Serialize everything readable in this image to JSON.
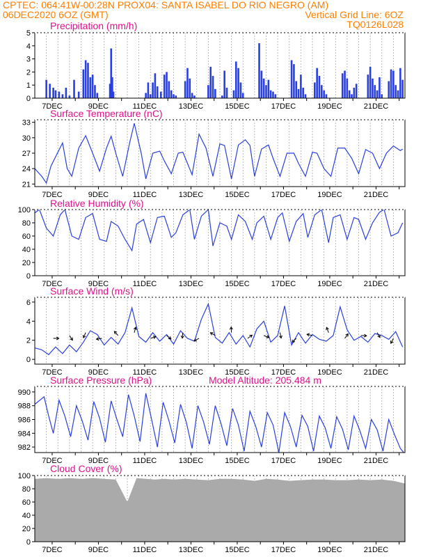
{
  "header": {
    "line1_left": "CPTEC:   064:41W-00:28N   PROX04: SANTA ISABEL DO RIO NEGRO (AM)",
    "line2_left": "06DEC2020 6OZ (GMT)",
    "line2_right": "Vertical Grid Line: 6OZ",
    "line3_right": "TQ0126L028"
  },
  "x_labels": [
    "7DEC",
    "9DEC",
    "11DEC",
    "13DEC",
    "15DEC",
    "17DEC",
    "19DEC",
    "21DEC"
  ],
  "panels": {
    "precip": {
      "title": "Precipitation (mm/h)"
    },
    "temp": {
      "title": "Surface Temperature (nC)"
    },
    "rh": {
      "title": "Relative Humidity (%)"
    },
    "wind": {
      "title": "Surface Wind (m/s)"
    },
    "pressure": {
      "title": "Surface Pressure (hPa)",
      "extra": "Model Altitude: 205.484 m"
    },
    "cloud": {
      "title": "Cloud Cover (%)"
    }
  },
  "colors": {
    "header": "#ff7f00",
    "title": "#e0118b",
    "series": "#2a3fe0",
    "cloud": "#aaaaaa"
  },
  "chart_data": [
    {
      "type": "bar",
      "title": "Precipitation (mm/h)",
      "ylim": [
        0,
        5
      ],
      "yticks": [
        0,
        1,
        2,
        3,
        4,
        5
      ],
      "x_unit": "days since 6DEC2020 06Z",
      "x": [
        0.5,
        0.65,
        0.8,
        0.9,
        1.05,
        1.2,
        1.35,
        1.5,
        1.7,
        1.9,
        2.1,
        2.2,
        2.3,
        2.4,
        2.5,
        2.6,
        2.7,
        3.25,
        3.3,
        3.35,
        3.4,
        4.8,
        4.9,
        5.0,
        5.1,
        5.2,
        5.3,
        5.45,
        5.6,
        5.7,
        5.8,
        5.9,
        6.0,
        6.1,
        6.5,
        6.6,
        6.7,
        6.8,
        6.9,
        7.5,
        7.6,
        7.7,
        7.8,
        8.1,
        8.2,
        8.3,
        8.6,
        8.7,
        8.8,
        8.9,
        9.0,
        9.7,
        9.8,
        9.9,
        10.0,
        10.1,
        10.2,
        10.3,
        10.4,
        11.1,
        11.2,
        11.3,
        11.4,
        11.5,
        11.6,
        11.7,
        12.1,
        12.2,
        12.3,
        12.4,
        12.5,
        12.6,
        13.3,
        13.4,
        13.5,
        13.6,
        13.7,
        13.8,
        13.9,
        14.4,
        14.5,
        14.6,
        14.7,
        14.8,
        14.9,
        15.0,
        15.3,
        15.4,
        15.5,
        15.6,
        15.7,
        15.8,
        15.9
      ],
      "values": [
        1.4,
        1.1,
        0.8,
        0.6,
        0.5,
        0.3,
        0.8,
        0.2,
        1.4,
        0.5,
        2.2,
        2.9,
        2.7,
        1.6,
        1.8,
        1.0,
        0.4,
        1.1,
        3.8,
        1.6,
        0.5,
        0.4,
        1.2,
        0.3,
        1.2,
        1.9,
        0.9,
        0.5,
        1.8,
        2.0,
        1.3,
        0.6,
        0.3,
        0.2,
        1.3,
        2.3,
        1.5,
        0.4,
        0.2,
        1.0,
        2.4,
        1.7,
        0.7,
        0.2,
        2.1,
        0.8,
        0.6,
        2.8,
        2.3,
        1.2,
        0.4,
        4.2,
        2.1,
        1.5,
        1.0,
        1.4,
        0.6,
        0.5,
        0.3,
        2.9,
        2.6,
        1.3,
        0.7,
        1.8,
        0.8,
        0.3,
        1.2,
        2.3,
        1.7,
        1.0,
        0.6,
        0.3,
        1.9,
        2.1,
        1.5,
        0.6,
        0.3,
        0.8,
        1.1,
        1.8,
        2.4,
        1.5,
        1.0,
        0.6,
        1.6,
        0.3,
        1.3,
        2.2,
        2.1,
        1.0,
        0.6,
        2.3,
        1.4
      ]
    },
    {
      "type": "line",
      "title": "Surface Temperature (nC)",
      "ylim": [
        20.5,
        33.5
      ],
      "yticks": [
        21,
        24,
        27,
        30,
        33
      ],
      "x_unit": "days since 6DEC2020 06Z",
      "x": [
        0,
        0.3,
        0.5,
        0.7,
        1.2,
        1.4,
        1.6,
        1.9,
        2.2,
        2.5,
        2.8,
        3.1,
        3.3,
        3.5,
        3.8,
        4.1,
        4.3,
        4.6,
        4.8,
        5.1,
        5.4,
        5.6,
        5.9,
        6.2,
        6.4,
        6.8,
        7.1,
        7.4,
        7.7,
        8.0,
        8.2,
        8.5,
        8.8,
        9.1,
        9.3,
        9.5,
        9.8,
        10.1,
        10.3,
        10.6,
        10.9,
        11.2,
        11.4,
        11.7,
        12.0,
        12.2,
        12.5,
        12.8,
        13.1,
        13.4,
        13.7,
        14.0,
        14.3,
        14.6,
        14.9,
        15.2,
        15.5,
        15.8,
        15.9
      ],
      "y": [
        24,
        22.5,
        21.2,
        24.5,
        29,
        24,
        22.5,
        28,
        30.4,
        27,
        23.5,
        28,
        30.3,
        27,
        22.5,
        29,
        32.8,
        27,
        22,
        27,
        27.4,
        25.5,
        23,
        27,
        27.2,
        22.8,
        30.7,
        28,
        22.5,
        28.8,
        28.5,
        22,
        28.6,
        29.6,
        28.5,
        22.5,
        27.8,
        28.6,
        26,
        22.5,
        27,
        27,
        25,
        22.5,
        27.2,
        27,
        24,
        22.5,
        28,
        28,
        26,
        23,
        27.7,
        27,
        24,
        27,
        28.4,
        27.5,
        27.8
      ]
    },
    {
      "type": "line",
      "title": "Relative Humidity (%)",
      "ylim": [
        0,
        100
      ],
      "yticks": [
        0,
        20,
        40,
        60,
        80,
        100
      ],
      "x_unit": "days since 6DEC2020 06Z",
      "x": [
        0,
        0.2,
        0.5,
        0.8,
        1.1,
        1.3,
        1.6,
        1.9,
        2.2,
        2.5,
        2.8,
        3.1,
        3.3,
        3.6,
        3.9,
        4.2,
        4.4,
        4.7,
        5.0,
        5.3,
        5.6,
        5.9,
        6.1,
        6.4,
        6.7,
        6.9,
        7.2,
        7.5,
        7.7,
        8.0,
        8.3,
        8.5,
        8.8,
        9.1,
        9.4,
        9.6,
        9.9,
        10.2,
        10.5,
        10.7,
        11.0,
        11.3,
        11.6,
        11.8,
        12.1,
        12.4,
        12.7,
        12.9,
        13.2,
        13.5,
        13.8,
        14.0,
        14.3,
        14.6,
        14.9,
        15.1,
        15.4,
        15.7,
        15.9
      ],
      "y": [
        95,
        100,
        72,
        60,
        92,
        100,
        60,
        55,
        88,
        94,
        55,
        52,
        82,
        75,
        55,
        38,
        78,
        85,
        50,
        88,
        90,
        58,
        65,
        92,
        100,
        55,
        90,
        100,
        45,
        80,
        75,
        55,
        92,
        82,
        55,
        80,
        90,
        55,
        88,
        95,
        52,
        82,
        94,
        58,
        92,
        100,
        50,
        88,
        92,
        55,
        88,
        85,
        55,
        80,
        96,
        100,
        60,
        65,
        80
      ]
    },
    {
      "type": "line",
      "title": "Surface Wind (m/s)",
      "ylim": [
        -0.5,
        6.5
      ],
      "yticks": [
        0,
        2,
        4,
        6
      ],
      "x_unit": "days since 6DEC2020 06Z",
      "x": [
        0,
        0.3,
        0.6,
        0.9,
        1.2,
        1.5,
        1.8,
        2.1,
        2.4,
        2.7,
        3.0,
        3.3,
        3.6,
        3.9,
        4.2,
        4.5,
        4.8,
        5.1,
        5.4,
        5.7,
        6.0,
        6.3,
        6.6,
        6.9,
        7.2,
        7.5,
        7.8,
        8.1,
        8.4,
        8.7,
        9.0,
        9.3,
        9.6,
        9.9,
        10.2,
        10.5,
        10.8,
        11.1,
        11.4,
        11.7,
        12.0,
        12.3,
        12.6,
        12.9,
        13.2,
        13.5,
        13.8,
        14.1,
        14.4,
        14.7,
        15.0,
        15.3,
        15.6,
        15.9
      ],
      "y": [
        1.2,
        1.0,
        0.5,
        1.3,
        0.6,
        1.5,
        0.8,
        1.8,
        3.0,
        2.6,
        1.5,
        2.3,
        1.6,
        2.8,
        5.4,
        2.4,
        1.8,
        2.8,
        1.9,
        2.6,
        1.6,
        3.0,
        2.2,
        1.9,
        4.2,
        5.8,
        2.3,
        1.7,
        2.8,
        1.6,
        2.5,
        1.3,
        3.2,
        4.0,
        1.8,
        2.5,
        5.6,
        1.5,
        2.8,
        1.7,
        2.6,
        2.1,
        1.9,
        2.5,
        5.5,
        3.1,
        2.0,
        2.4,
        1.8,
        2.7,
        2.5,
        2.1,
        2.9,
        1.3
      ]
    },
    {
      "type": "line",
      "title": "Surface Pressure (hPa)",
      "ylim": [
        981.2,
        990.8
      ],
      "yticks": [
        982,
        984,
        986,
        988,
        990
      ],
      "x_unit": "days since 6DEC2020 06Z",
      "x": [
        0,
        0.4,
        0.6,
        0.8,
        1.05,
        1.3,
        1.55,
        1.8,
        2.05,
        2.3,
        2.55,
        2.8,
        3.05,
        3.3,
        3.55,
        3.8,
        4.05,
        4.3,
        4.55,
        4.8,
        5.05,
        5.3,
        5.55,
        5.8,
        6.05,
        6.3,
        6.55,
        6.8,
        7.05,
        7.3,
        7.55,
        7.8,
        8.05,
        8.3,
        8.55,
        8.8,
        9.05,
        9.3,
        9.55,
        9.8,
        10.05,
        10.3,
        10.55,
        10.8,
        11.05,
        11.3,
        11.55,
        11.8,
        12.05,
        12.3,
        12.55,
        12.8,
        13.05,
        13.3,
        13.55,
        13.8,
        14.05,
        14.3,
        14.55,
        14.8,
        15.05,
        15.3,
        15.55,
        15.8,
        15.95
      ],
      "y": [
        988.2,
        989.3,
        986.5,
        984.0,
        988.8,
        986.5,
        983.5,
        988.0,
        985.8,
        983.0,
        988.6,
        986.2,
        982.7,
        988.7,
        986.0,
        983.5,
        989.6,
        986.5,
        982.8,
        989.8,
        986.0,
        982.0,
        988.5,
        985.8,
        982.6,
        988.2,
        985.6,
        981.8,
        988.0,
        985.6,
        982.4,
        988.0,
        985.4,
        982.2,
        987.6,
        985.2,
        981.4,
        987.2,
        985.0,
        982.0,
        987.0,
        985.2,
        981.2,
        987.0,
        985.0,
        982.0,
        986.6,
        985.0,
        981.4,
        986.5,
        984.8,
        981.8,
        986.4,
        984.6,
        981.6,
        986.5,
        984.4,
        981.8,
        986.0,
        984.5,
        981.4,
        986.0,
        983.8,
        981.8,
        981.2
      ]
    },
    {
      "type": "area",
      "title": "Cloud Cover (%)",
      "ylim": [
        0,
        100
      ],
      "yticks": [
        0,
        20,
        40,
        60,
        80,
        100
      ],
      "x_unit": "days since 6DEC2020 06Z",
      "x": [
        0,
        0.5,
        1.0,
        1.5,
        2.0,
        2.5,
        3.0,
        3.5,
        4.0,
        4.4,
        4.8,
        5.2,
        5.6,
        6.0,
        6.5,
        7.0,
        7.5,
        8.0,
        8.5,
        9.0,
        9.5,
        10.0,
        10.5,
        11.0,
        11.5,
        12.0,
        12.5,
        13.0,
        13.5,
        14.0,
        14.5,
        15.0,
        15.5,
        16.0
      ],
      "y": [
        95,
        96,
        95,
        96,
        95,
        96,
        95,
        94,
        60,
        96,
        95,
        94,
        95,
        94,
        95,
        94,
        93,
        95,
        95,
        94,
        92,
        95,
        94,
        92,
        93,
        94,
        94,
        93,
        93,
        94,
        93,
        94,
        92,
        88
      ]
    }
  ]
}
